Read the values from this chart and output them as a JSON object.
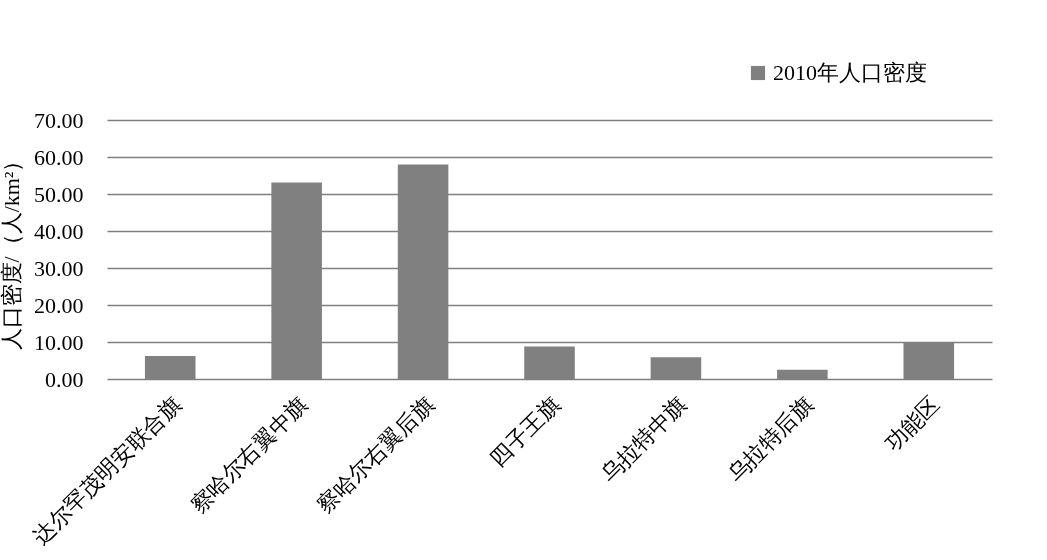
{
  "chart_data": {
    "type": "bar",
    "ylabel": "人口密度/（人/km²）",
    "categories": [
      "达尔罕茂明安联合旗",
      "察哈尔右翼中旗",
      "察哈尔右翼后旗",
      "四子王旗",
      "乌拉特中旗",
      "乌拉特后旗",
      "功能区"
    ],
    "series": [
      {
        "name": "2010年人口密度",
        "color": "#808080",
        "values": [
          6.2,
          53.1,
          58.0,
          8.8,
          5.9,
          2.5,
          10.0
        ]
      }
    ],
    "ylim": [
      0,
      70
    ],
    "yticks": [
      {
        "value": 0,
        "label": "0.00"
      },
      {
        "value": 10,
        "label": "10.00"
      },
      {
        "value": 20,
        "label": "20.00"
      },
      {
        "value": 30,
        "label": "30.00"
      },
      {
        "value": 40,
        "label": "40.00"
      },
      {
        "value": 50,
        "label": "50.00"
      },
      {
        "value": 60,
        "label": "60.00"
      },
      {
        "value": 70,
        "label": "70.00"
      }
    ],
    "grid": "y",
    "legend": "top right"
  }
}
